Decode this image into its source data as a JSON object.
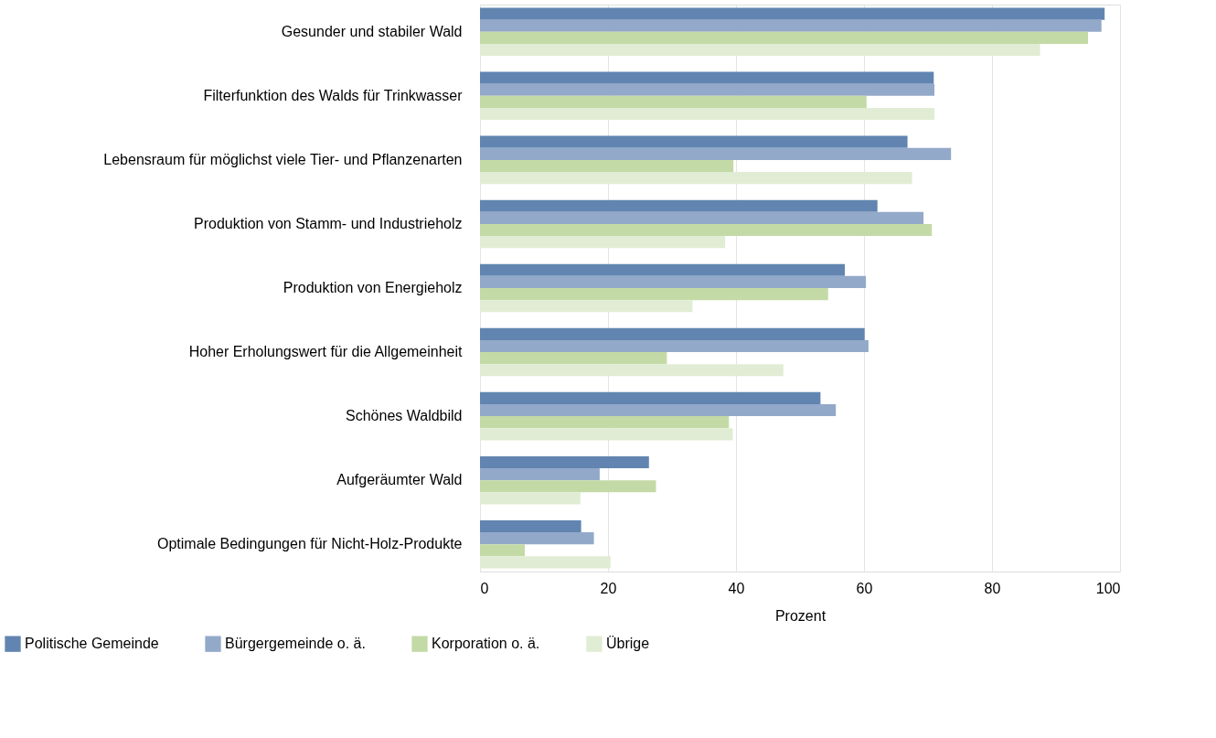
{
  "chart_data": {
    "type": "bar",
    "orientation": "horizontal",
    "xlabel": "Prozent",
    "categories": [
      "Gesunder und stabiler Wald",
      "Filterfunktion des Walds für Trinkwasser",
      "Lebensraum für möglichst viele Tier- und Pflanzenarten",
      "Produktion von Stamm- und Industrieholz",
      "Produktion von Energieholz",
      "Hoher Erholungswert für die Allgemeinheit",
      "Schönes Waldbild",
      "Aufgeräumter Wald",
      "Optimale Bedingungen für Nicht-Holz-Produkte"
    ],
    "series": [
      {
        "name": "Politische Gemeinde",
        "color": "#6185b0",
        "values": [
          97.6,
          70.9,
          66.8,
          62.1,
          57.0,
          60.1,
          53.2,
          26.4,
          15.8
        ]
      },
      {
        "name": "Bürgergemeinde o. ä.",
        "color": "#93a9c9",
        "values": [
          97.1,
          71.0,
          73.6,
          69.3,
          60.3,
          60.7,
          55.6,
          18.7,
          17.8
        ]
      },
      {
        "name": "Korporation o. ä.",
        "color": "#c4daa6",
        "values": [
          95.0,
          60.4,
          39.6,
          70.6,
          54.4,
          29.2,
          38.9,
          27.5,
          7.0
        ]
      },
      {
        "name": "Übrige",
        "color": "#e1ecd4",
        "values": [
          87.5,
          71.0,
          67.5,
          38.3,
          33.2,
          47.4,
          39.5,
          15.7,
          20.4
        ]
      }
    ],
    "xlim": [
      0,
      100
    ],
    "xticks": [
      0,
      20,
      40,
      60,
      80,
      100
    ],
    "grid": "x",
    "legend": "bottom left"
  }
}
